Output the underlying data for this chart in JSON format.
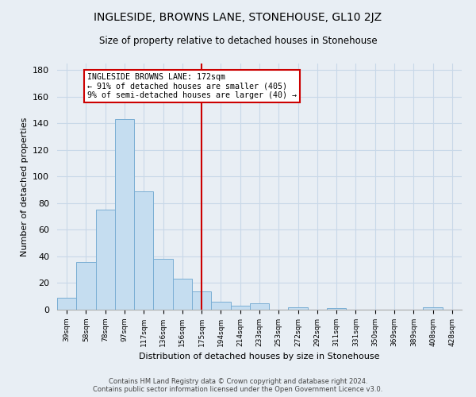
{
  "title": "INGLESIDE, BROWNS LANE, STONEHOUSE, GL10 2JZ",
  "subtitle": "Size of property relative to detached houses in Stonehouse",
  "xlabel": "Distribution of detached houses by size in Stonehouse",
  "ylabel": "Number of detached properties",
  "bar_labels": [
    "39sqm",
    "58sqm",
    "78sqm",
    "97sqm",
    "117sqm",
    "136sqm",
    "156sqm",
    "175sqm",
    "194sqm",
    "214sqm",
    "233sqm",
    "253sqm",
    "272sqm",
    "292sqm",
    "311sqm",
    "331sqm",
    "350sqm",
    "369sqm",
    "389sqm",
    "408sqm",
    "428sqm"
  ],
  "bar_values": [
    9,
    36,
    75,
    143,
    89,
    38,
    23,
    14,
    6,
    3,
    5,
    0,
    2,
    0,
    1,
    0,
    0,
    0,
    0,
    2,
    0
  ],
  "bar_color": "#c5ddf0",
  "bar_edge_color": "#7aaed4",
  "vline_x_index": 7,
  "vline_color": "#cc0000",
  "annotation_line1": "INGLESIDE BROWNS LANE: 172sqm",
  "annotation_line2": "← 91% of detached houses are smaller (405)",
  "annotation_line3": "9% of semi-detached houses are larger (40) →",
  "annotation_box_color": "#ffffff",
  "annotation_box_edge": "#cc0000",
  "ylim": [
    0,
    185
  ],
  "yticks": [
    0,
    20,
    40,
    60,
    80,
    100,
    120,
    140,
    160,
    180
  ],
  "grid_color": "#c8d8e8",
  "background_color": "#e8eef4",
  "footer_line1": "Contains HM Land Registry data © Crown copyright and database right 2024.",
  "footer_line2": "Contains public sector information licensed under the Open Government Licence v3.0."
}
